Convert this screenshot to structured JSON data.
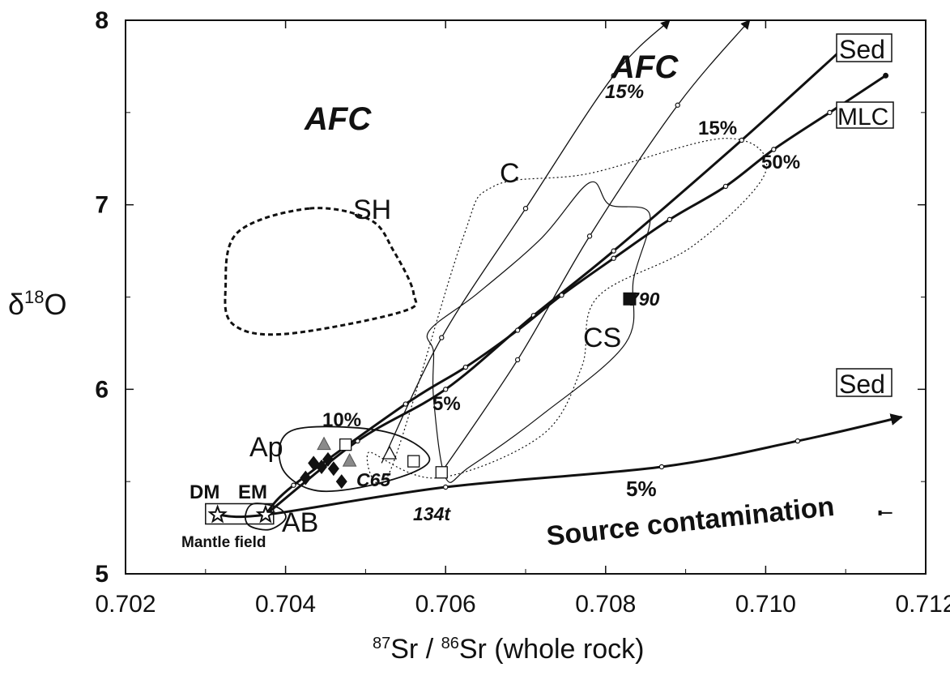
{
  "chart_data": {
    "type": "scatter",
    "title": "",
    "xlabel": {
      "sup1": "87",
      "a": "Sr / ",
      "sup2": "86",
      "b": "Sr (whole rock)"
    },
    "ylabel": {
      "delta": "δ",
      "sup": "18",
      "o": "O"
    },
    "xlim": [
      0.702,
      0.712
    ],
    "ylim": [
      5,
      8
    ],
    "xticks": [
      "0.702",
      "0.704",
      "0.706",
      "0.708",
      "0.710",
      "0.712"
    ],
    "yticks": [
      "5",
      "6",
      "7",
      "8"
    ],
    "field_labels": {
      "afc_left": "AFC",
      "afc_top": "AFC",
      "sh": "SH",
      "c": "C",
      "cs": "CS",
      "ap": "Ap",
      "ab": "AB",
      "dm": "DM",
      "em": "EM",
      "mantle_field": "Mantle field",
      "sed_top": "Sed",
      "sed_bottom": "Sed",
      "mlc": "MLC",
      "source_contamination": "Source contamination"
    },
    "percent_labels": {
      "p15_afc": "15%",
      "p15_mlc": "15%",
      "p50": "50%",
      "p10": "10%",
      "p5_mid": "5%",
      "p5_source": "5%"
    },
    "sample_labels": {
      "s790": "790",
      "c65": "C65",
      "s134t": "134t"
    },
    "mixing_curves": [
      {
        "id": "afc1",
        "points": [
          [
            0.7052,
            5.6
          ],
          [
            0.70595,
            6.28
          ],
          [
            0.707,
            6.98
          ],
          [
            0.7081,
            7.7
          ],
          [
            0.7088,
            8.0
          ]
        ]
      },
      {
        "id": "afc2",
        "points": [
          [
            0.7059,
            5.52
          ],
          [
            0.7069,
            6.16
          ],
          [
            0.7078,
            6.83
          ],
          [
            0.7089,
            7.54
          ],
          [
            0.7098,
            8.0
          ]
        ]
      },
      {
        "id": "sed_top",
        "points": [
          [
            0.70375,
            5.32
          ],
          [
            0.7049,
            5.72
          ],
          [
            0.706,
            6.0
          ],
          [
            0.7071,
            6.4
          ],
          [
            0.7081,
            6.75
          ],
          [
            0.7097,
            7.35
          ],
          [
            0.7111,
            7.9
          ]
        ]
      },
      {
        "id": "mlc",
        "points": [
          [
            0.70375,
            5.32
          ],
          [
            0.7041,
            5.48
          ],
          [
            0.7055,
            5.92
          ],
          [
            0.70625,
            6.12
          ],
          [
            0.7069,
            6.32
          ],
          [
            0.70745,
            6.51
          ],
          [
            0.7081,
            6.71
          ],
          [
            0.7088,
            6.92
          ],
          [
            0.7095,
            7.1
          ],
          [
            0.7101,
            7.3
          ],
          [
            0.7108,
            7.5
          ],
          [
            0.7115,
            7.7
          ]
        ]
      },
      {
        "id": "source",
        "points": [
          [
            0.70315,
            5.32
          ],
          [
            0.70375,
            5.32
          ],
          [
            0.706,
            5.47
          ],
          [
            0.7087,
            5.58
          ],
          [
            0.7104,
            5.72
          ],
          [
            0.7117,
            5.85
          ]
        ]
      }
    ],
    "samples": [
      {
        "marker": "diamond-filled",
        "x": 0.70425,
        "y": 5.52
      },
      {
        "marker": "diamond-filled",
        "x": 0.70435,
        "y": 5.6
      },
      {
        "marker": "diamond-filled",
        "x": 0.70445,
        "y": 5.58
      },
      {
        "marker": "diamond-filled",
        "x": 0.70453,
        "y": 5.62
      },
      {
        "marker": "diamond-filled",
        "x": 0.7046,
        "y": 5.57
      },
      {
        "marker": "diamond-filled",
        "x": 0.7047,
        "y": 5.5
      },
      {
        "marker": "triangle-gray",
        "x": 0.70448,
        "y": 5.7
      },
      {
        "marker": "triangle-gray",
        "x": 0.7048,
        "y": 5.61
      },
      {
        "marker": "square-open",
        "x": 0.70475,
        "y": 5.7
      },
      {
        "marker": "square-open",
        "x": 0.7056,
        "y": 5.61
      },
      {
        "marker": "square-open",
        "x": 0.70595,
        "y": 5.55
      },
      {
        "marker": "triangle-open",
        "x": 0.7053,
        "y": 5.65
      },
      {
        "marker": "square-filled",
        "x": 0.7083,
        "y": 6.49
      },
      {
        "marker": "star-open",
        "x": 0.70315,
        "y": 5.32
      },
      {
        "marker": "star-open",
        "x": 0.70375,
        "y": 5.32
      }
    ],
    "fields": [
      {
        "id": "sh",
        "style": "dashed-bold",
        "points": [
          [
            0.7043,
            6.98
          ],
          [
            0.70505,
            6.92
          ],
          [
            0.70535,
            6.75
          ],
          [
            0.7056,
            6.52
          ],
          [
            0.70545,
            6.42
          ],
          [
            0.704,
            6.3
          ],
          [
            0.70335,
            6.35
          ],
          [
            0.70325,
            6.55
          ],
          [
            0.7034,
            6.85
          ]
        ]
      },
      {
        "id": "c",
        "style": "dotted",
        "points": [
          [
            0.7053,
            5.55
          ],
          [
            0.7062,
            6.8
          ],
          [
            0.7066,
            7.1
          ],
          [
            0.7078,
            7.17
          ],
          [
            0.7095,
            7.36
          ],
          [
            0.71,
            7.18
          ],
          [
            0.7091,
            6.78
          ],
          [
            0.7079,
            6.5
          ],
          [
            0.7077,
            6.12
          ],
          [
            0.7072,
            5.75
          ],
          [
            0.7059,
            5.52
          ],
          [
            0.70505,
            5.66
          ]
        ]
      },
      {
        "id": "cs",
        "style": "thin",
        "points": [
          [
            0.7058,
            6.32
          ],
          [
            0.7064,
            6.52
          ],
          [
            0.7072,
            6.82
          ],
          [
            0.7078,
            7.12
          ],
          [
            0.70805,
            7.0
          ],
          [
            0.70855,
            6.95
          ],
          [
            0.70835,
            6.6
          ],
          [
            0.70825,
            6.25
          ],
          [
            0.7072,
            5.86
          ],
          [
            0.7063,
            5.58
          ],
          [
            0.706,
            5.52
          ],
          [
            0.70585,
            5.95
          ],
          [
            0.70585,
            6.2
          ]
        ]
      },
      {
        "id": "ap",
        "style": "solid",
        "points": [
          [
            0.7041,
            5.78
          ],
          [
            0.70525,
            5.77
          ],
          [
            0.7058,
            5.62
          ],
          [
            0.70525,
            5.5
          ],
          [
            0.7044,
            5.45
          ],
          [
            0.70395,
            5.58
          ]
        ]
      },
      {
        "id": "ab",
        "style": "solid",
        "points": [
          [
            0.7036,
            5.38
          ],
          [
            0.7039,
            5.36
          ],
          [
            0.704,
            5.3
          ],
          [
            0.7038,
            5.24
          ],
          [
            0.70355,
            5.26
          ],
          [
            0.7035,
            5.32
          ]
        ]
      }
    ],
    "mantle_box": {
      "x": [
        0.703,
        0.70385
      ],
      "y": [
        5.27,
        5.38
      ]
    },
    "error_bar": {
      "x": 0.7115,
      "y": 5.33
    }
  }
}
